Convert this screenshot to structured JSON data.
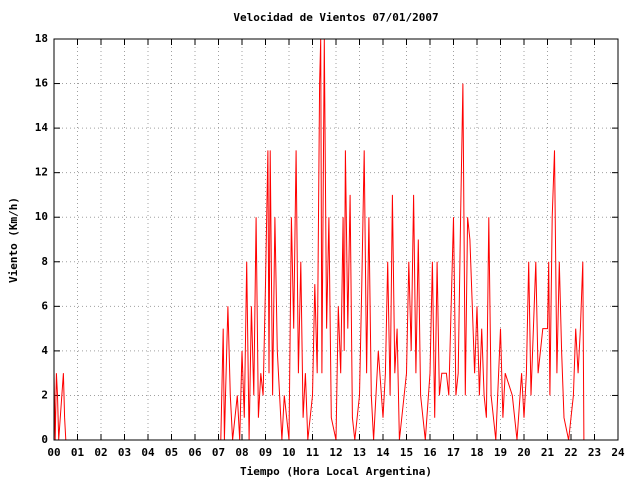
{
  "chart_data": {
    "type": "line",
    "title": "Velocidad de Vientos 07/01/2007",
    "xlabel": "Tiempo (Hora Local Argentina)",
    "ylabel": "Viento (Km/h)",
    "color": "#ff0000",
    "grid": true,
    "x": [
      0.0,
      0.05,
      0.1,
      0.15,
      0.2,
      0.4,
      0.45,
      0.5,
      7.0,
      7.1,
      7.2,
      7.25,
      7.3,
      7.4,
      7.5,
      7.6,
      7.8,
      7.9,
      8.0,
      8.1,
      8.2,
      8.3,
      8.4,
      8.5,
      8.6,
      8.7,
      8.8,
      8.9,
      9.0,
      9.1,
      9.15,
      9.2,
      9.3,
      9.4,
      9.5,
      9.6,
      9.7,
      9.8,
      10.0,
      10.1,
      10.2,
      10.3,
      10.4,
      10.5,
      10.6,
      10.7,
      10.8,
      11.0,
      11.1,
      11.2,
      11.3,
      11.35,
      11.4,
      11.5,
      11.6,
      11.7,
      11.8,
      12.0,
      12.1,
      12.2,
      12.3,
      12.35,
      12.4,
      12.5,
      12.6,
      12.7,
      12.8,
      13.0,
      13.1,
      13.2,
      13.3,
      13.4,
      13.5,
      13.6,
      13.8,
      14.0,
      14.1,
      14.2,
      14.3,
      14.4,
      14.5,
      14.6,
      14.7,
      15.0,
      15.1,
      15.2,
      15.3,
      15.4,
      15.5,
      15.6,
      15.8,
      16.0,
      16.1,
      16.2,
      16.3,
      16.4,
      16.5,
      16.7,
      16.8,
      17.0,
      17.1,
      17.2,
      17.3,
      17.4,
      17.5,
      17.6,
      17.7,
      17.8,
      17.9,
      18.0,
      18.1,
      18.2,
      18.3,
      18.4,
      18.5,
      18.6,
      18.8,
      19.0,
      19.1,
      19.2,
      19.5,
      19.7,
      19.9,
      20.0,
      20.1,
      20.2,
      20.3,
      20.5,
      20.6,
      20.8,
      21.0,
      21.05,
      21.1,
      21.2,
      21.3,
      21.4,
      21.5,
      21.6,
      21.7,
      21.9,
      22.1,
      22.2,
      22.3,
      22.4,
      22.5,
      22.55
    ],
    "values": [
      3,
      0,
      3,
      2,
      0,
      3,
      1,
      0,
      0,
      0,
      5,
      0,
      2,
      6,
      2,
      0,
      2,
      0,
      4,
      1,
      8,
      0,
      6,
      2,
      10,
      1,
      3,
      2,
      7,
      13,
      3,
      13,
      2,
      10,
      4,
      2,
      0,
      2,
      0,
      10,
      5,
      13,
      3,
      8,
      1,
      3,
      0,
      2,
      7,
      3,
      16,
      18,
      3,
      18,
      5,
      10,
      1,
      0,
      6,
      3,
      10,
      4,
      13,
      5,
      11,
      1,
      0,
      2,
      7,
      13,
      3,
      10,
      2,
      0,
      4,
      1,
      3,
      8,
      2,
      11,
      3,
      5,
      0,
      3,
      8,
      4,
      11,
      3,
      9,
      2,
      0,
      3,
      8,
      1,
      8,
      2,
      3,
      3,
      2,
      10,
      2,
      3,
      10,
      16,
      2,
      10,
      9,
      6,
      3,
      6,
      2,
      5,
      2,
      1,
      10,
      2,
      0,
      5,
      1,
      3,
      2,
      0,
      3,
      1,
      3,
      8,
      2,
      8,
      3,
      5,
      5,
      8,
      2,
      10,
      13,
      3,
      8,
      4,
      1,
      0,
      2,
      5,
      3,
      5,
      8,
      0
    ],
    "xlim": [
      0,
      24
    ],
    "xticks": [
      {
        "value": 0,
        "label": "00"
      },
      {
        "value": 1,
        "label": "01"
      },
      {
        "value": 2,
        "label": "02"
      },
      {
        "value": 3,
        "label": "03"
      },
      {
        "value": 4,
        "label": "04"
      },
      {
        "value": 5,
        "label": "05"
      },
      {
        "value": 6,
        "label": "06"
      },
      {
        "value": 7,
        "label": "07"
      },
      {
        "value": 8,
        "label": "08"
      },
      {
        "value": 9,
        "label": "09"
      },
      10,
      11,
      12,
      13,
      14,
      15,
      16,
      17,
      18,
      19,
      20,
      21,
      22,
      23,
      24
    ],
    "ylim": [
      0,
      18
    ],
    "yticks": [
      0,
      2,
      4,
      6,
      8,
      10,
      12,
      14,
      16,
      18
    ]
  }
}
